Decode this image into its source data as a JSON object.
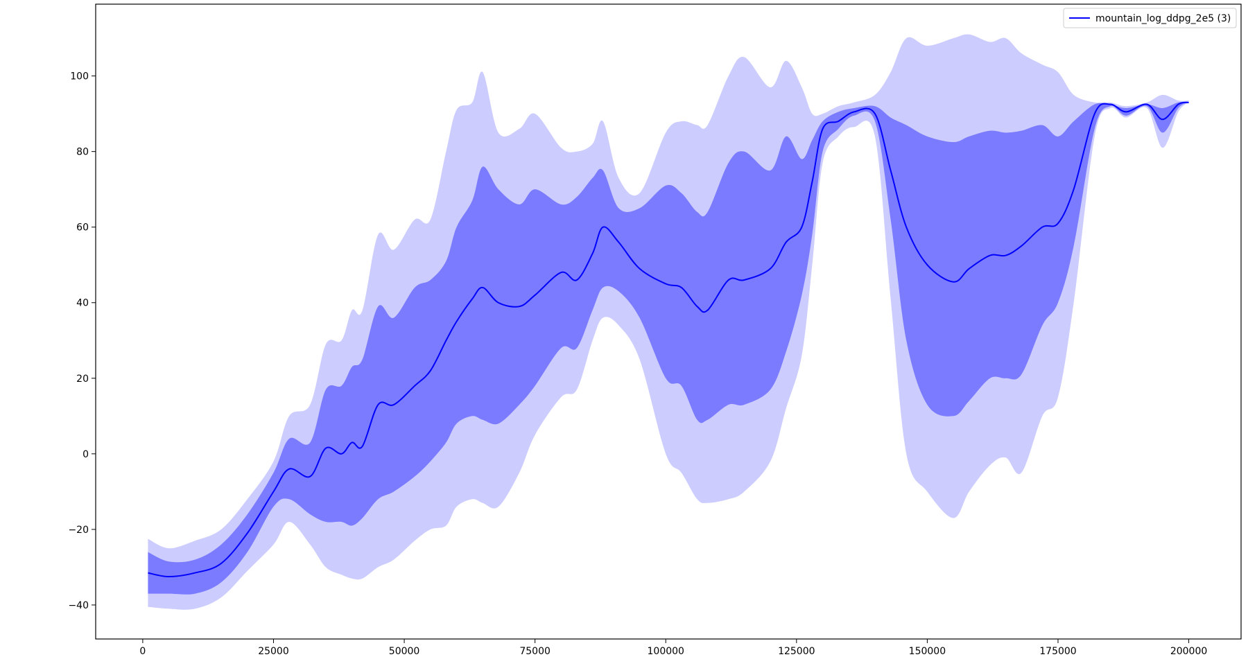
{
  "chart_data": {
    "type": "line",
    "title": "",
    "xlabel": "",
    "ylabel": "",
    "xlim": [
      -9000,
      210000
    ],
    "ylim": [
      -49,
      119
    ],
    "x_ticks": [
      0,
      25000,
      50000,
      75000,
      100000,
      125000,
      150000,
      175000,
      200000
    ],
    "y_ticks": [
      -40,
      -20,
      0,
      20,
      40,
      60,
      80,
      100
    ],
    "grid": false,
    "legend": {
      "position": "top-right"
    },
    "colors": {
      "line": "#0000ff",
      "band_inner": "#7b7bff",
      "band_outer": "#ccccff"
    },
    "x": [
      1000,
      5000,
      10000,
      15000,
      20000,
      25000,
      28000,
      32000,
      35000,
      38000,
      40000,
      42000,
      45000,
      48000,
      52000,
      55000,
      58000,
      60000,
      63000,
      65000,
      68000,
      72000,
      75000,
      80000,
      83000,
      86000,
      88000,
      91000,
      95000,
      100000,
      103000,
      106000,
      108000,
      112000,
      115000,
      120000,
      123000,
      126000,
      128000,
      130000,
      133000,
      136000,
      140000,
      143000,
      146000,
      150000,
      155000,
      158000,
      162000,
      165000,
      168000,
      172000,
      175000,
      178000,
      182000,
      185000,
      188000,
      192000,
      195000,
      198000,
      200000
    ],
    "series": [
      {
        "name": "mountain_log_ddpg_2e5 (3)",
        "mean": [
          -31.5,
          -32.5,
          -31.5,
          -29,
          -21,
          -10,
          -4,
          -6,
          1.5,
          0,
          3,
          2,
          13,
          13,
          18,
          22,
          30,
          35,
          41,
          44,
          40,
          39,
          42,
          48,
          46,
          53,
          60,
          56,
          49,
          45,
          44,
          39,
          38,
          46,
          46,
          49,
          56,
          60,
          72,
          86,
          88,
          90.5,
          90,
          75,
          60,
          50,
          45.5,
          49,
          52.5,
          52.5,
          55,
          60,
          61,
          70,
          90,
          92.5,
          90.5,
          92.5,
          88.5,
          92.5,
          93
        ],
        "inner_hi": [
          -26,
          -28.5,
          -28,
          -24,
          -16,
          -5,
          4,
          3,
          17,
          18,
          23,
          25,
          39,
          36,
          44,
          46,
          51,
          60,
          67,
          76,
          70,
          66,
          70,
          66,
          68,
          73,
          75,
          65,
          65,
          71,
          69,
          64,
          64,
          77,
          80,
          75,
          84,
          78,
          83,
          88,
          90.5,
          91.5,
          92,
          89,
          87,
          84,
          82.5,
          84,
          85.5,
          85,
          85.5,
          87,
          84,
          88,
          92.5,
          92.5,
          91.5,
          92.5,
          91.5,
          93,
          93
        ],
        "inner_lo": [
          -37,
          -37,
          -37,
          -34,
          -26,
          -14,
          -12,
          -16,
          -18,
          -18,
          -19,
          -17,
          -12,
          -10,
          -6,
          -2,
          3,
          8,
          10,
          9,
          8,
          13,
          18,
          28,
          28,
          38,
          44,
          43,
          36,
          20,
          18,
          9,
          9,
          13,
          13,
          17,
          27,
          42,
          58,
          80,
          86,
          89.5,
          88,
          62,
          30,
          13,
          10,
          14,
          20,
          20,
          21,
          34,
          40,
          55,
          86,
          92,
          89.5,
          92,
          85,
          91.5,
          93
        ],
        "outer_hi": [
          -22.5,
          -25,
          -23,
          -20,
          -12,
          -2,
          10,
          13,
          29,
          30,
          38,
          38,
          58,
          54,
          62,
          62,
          80,
          91,
          93,
          101,
          85,
          86,
          90,
          81,
          80,
          82,
          88,
          73,
          69,
          85,
          88,
          87,
          87,
          100,
          105,
          97,
          104,
          97,
          90,
          90,
          92,
          93,
          95,
          101,
          110,
          108,
          110,
          111,
          109,
          110,
          106,
          103,
          101,
          95,
          93,
          93,
          92,
          93,
          95,
          93.5,
          93.5
        ],
        "outer_lo": [
          -40.5,
          -41,
          -41,
          -38,
          -31,
          -24,
          -18,
          -24,
          -30,
          -32,
          -33,
          -33,
          -30,
          -28,
          -23,
          -20,
          -19,
          -14,
          -12,
          -13,
          -14,
          -5,
          5,
          15,
          17,
          30,
          36,
          34,
          25,
          0,
          -5,
          -12,
          -13,
          -12,
          -10,
          -2,
          12,
          26,
          50,
          77,
          84,
          86.5,
          84,
          41,
          0,
          -10,
          -17,
          -10,
          -3,
          -1,
          -5,
          10,
          15,
          40,
          84,
          91.5,
          89,
          91.5,
          81,
          90.5,
          93
        ]
      }
    ]
  }
}
